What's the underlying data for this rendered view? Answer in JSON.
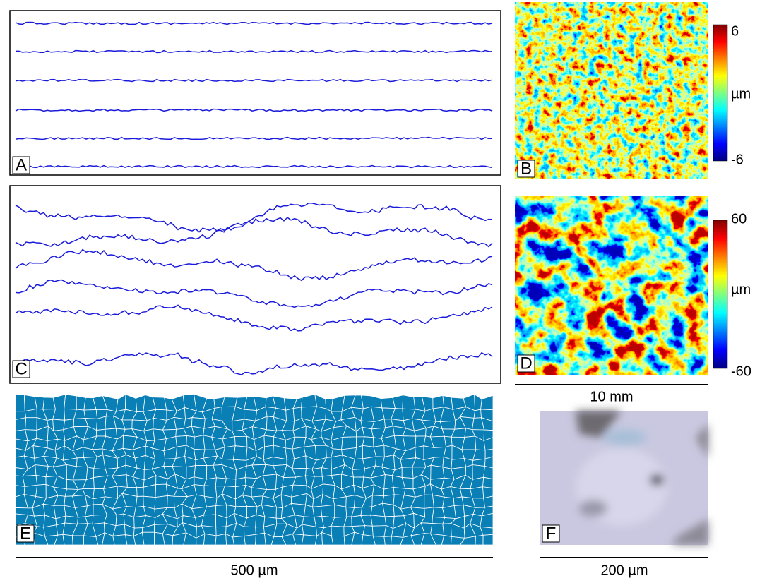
{
  "panels": {
    "a": {
      "label": "A"
    },
    "b": {
      "label": "B",
      "colorbar": {
        "max": 6,
        "unit": "µm",
        "min": -6
      }
    },
    "c": {
      "label": "C"
    },
    "d": {
      "label": "D",
      "colorbar": {
        "max": 60,
        "unit": "µm",
        "min": -60
      }
    },
    "e": {
      "label": "E"
    },
    "f": {
      "label": "F"
    }
  },
  "scale_bars": {
    "maps": "10 mm",
    "cells": "500 µm",
    "photo": "200 µm"
  }
}
